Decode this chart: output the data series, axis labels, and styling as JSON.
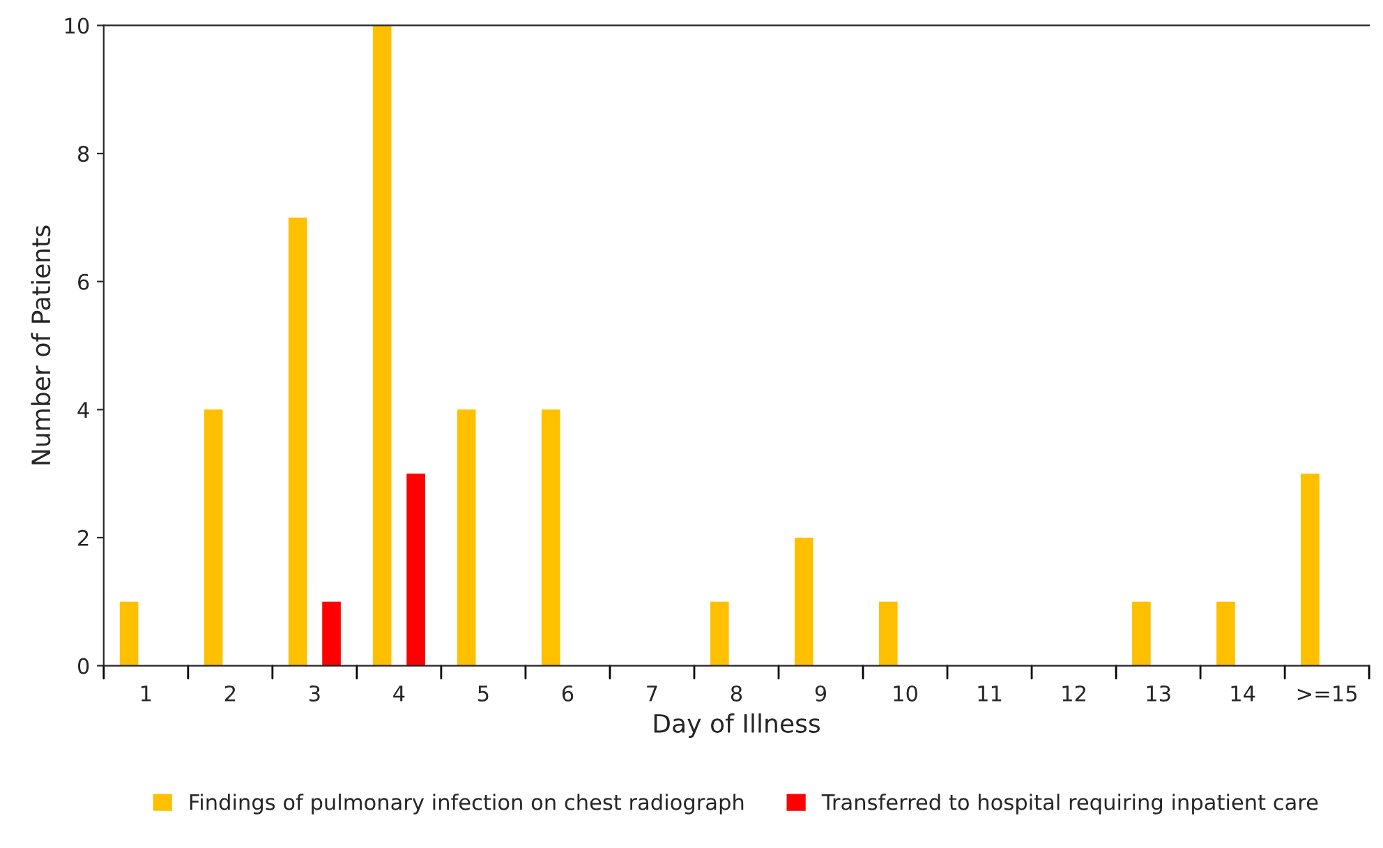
{
  "chart_data": {
    "type": "bar",
    "xlabel": "Day of Illness",
    "ylabel": "Number of Patients",
    "categories": [
      "1",
      "2",
      "3",
      "4",
      "5",
      "6",
      "7",
      "8",
      "9",
      "10",
      "11",
      "12",
      "13",
      "14",
      ">=15"
    ],
    "series": [
      {
        "name": "Findings of pulmonary infection on chest radiograph",
        "color": "#ffc000",
        "values": [
          1,
          4,
          7,
          10,
          4,
          4,
          0,
          1,
          2,
          1,
          0,
          0,
          1,
          1,
          3
        ]
      },
      {
        "name": "Transferred to hospital requiring inpatient care",
        "color": "#ff0000",
        "values": [
          0,
          0,
          1,
          3,
          0,
          0,
          0,
          0,
          0,
          0,
          0,
          0,
          0,
          0,
          0
        ]
      }
    ],
    "ylim": [
      0,
      10
    ],
    "yticks": [
      0,
      2,
      4,
      6,
      8,
      10
    ],
    "grid": false,
    "legend": "bottom"
  }
}
